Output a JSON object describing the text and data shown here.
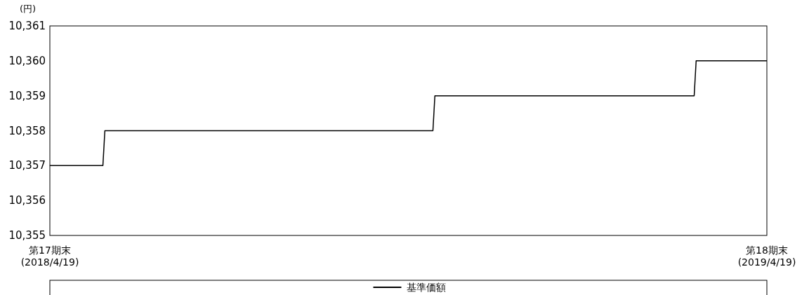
{
  "chart_data": {
    "type": "line",
    "ylabel": "(円)",
    "x": [
      "2018-04-19",
      "2018-05-16",
      "2018-05-17",
      "2018-10-31",
      "2018-11-01",
      "2019-03-13",
      "2019-03-14",
      "2019-04-19"
    ],
    "series": [
      {
        "name": "基準価額",
        "color": "#000000",
        "values": [
          10357,
          10357,
          10358,
          10358,
          10359,
          10359,
          10360,
          10360
        ]
      }
    ],
    "xlim": [
      "2018-04-19",
      "2019-04-19"
    ],
    "xticks": [
      {
        "value": "2018-04-19",
        "label": "第17期末\n(2018/4/19)"
      },
      {
        "value": "2019-04-19",
        "label": "第18期末\n(2019/4/19)"
      }
    ],
    "ylim": [
      10355,
      10361
    ],
    "yticks": [
      {
        "value": 10355,
        "label": "10,355"
      },
      {
        "value": 10356,
        "label": "10,356"
      },
      {
        "value": 10357,
        "label": "10,357"
      },
      {
        "value": 10358,
        "label": "10,358"
      },
      {
        "value": 10359,
        "label": "10,359"
      },
      {
        "value": 10360,
        "label": "10,360"
      },
      {
        "value": 10361,
        "label": "10,361"
      }
    ],
    "legend": "bottom"
  }
}
